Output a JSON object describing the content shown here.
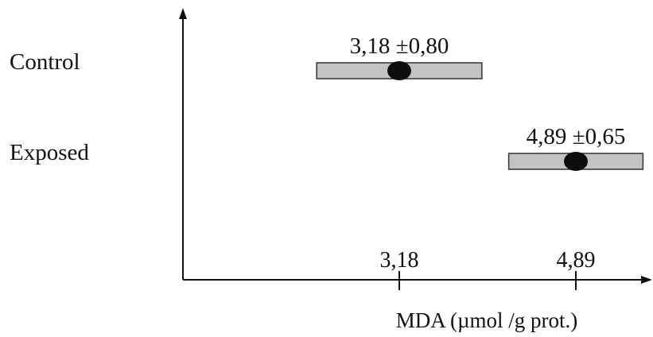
{
  "chart_data": {
    "type": "scatter",
    "title": "",
    "xlabel": "MDA (µmol /g prot.)",
    "ylabel": "",
    "categories": [
      "Control",
      "Exposed"
    ],
    "series": [
      {
        "values": [
          3.18,
          4.89
        ],
        "errors": [
          0.8,
          0.65
        ],
        "annotations": [
          "3,18 ±0,80",
          "4,89 ±0,65"
        ]
      }
    ],
    "x_ticks": [
      3.18,
      4.89
    ],
    "x_tick_labels": [
      "3,18",
      "4,89"
    ],
    "grid": false,
    "legend": "none"
  },
  "colors": {
    "axis": "#111111",
    "box_fill": "#c3c3c3",
    "box_stroke": "#333333",
    "marker": "#0d0d0d"
  }
}
